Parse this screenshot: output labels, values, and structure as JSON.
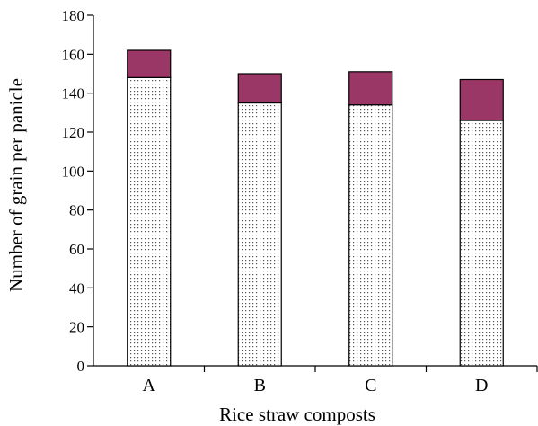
{
  "chart_data": {
    "type": "bar",
    "stacked": true,
    "categories": [
      "A",
      "B",
      "C",
      "D"
    ],
    "series": [
      {
        "pattern": "dotted",
        "color": "#ffffff",
        "values": [
          148,
          135,
          134,
          126
        ]
      },
      {
        "color": "#9b3766",
        "values": [
          14,
          15,
          17,
          21
        ]
      }
    ],
    "xlabel": "Rice straw composts",
    "ylabel": "Number of grain per panicle",
    "ylim": [
      0,
      180
    ],
    "yticks": [
      0,
      20,
      40,
      60,
      80,
      100,
      120,
      140,
      160,
      180
    ],
    "grid": false,
    "legend": "none"
  }
}
